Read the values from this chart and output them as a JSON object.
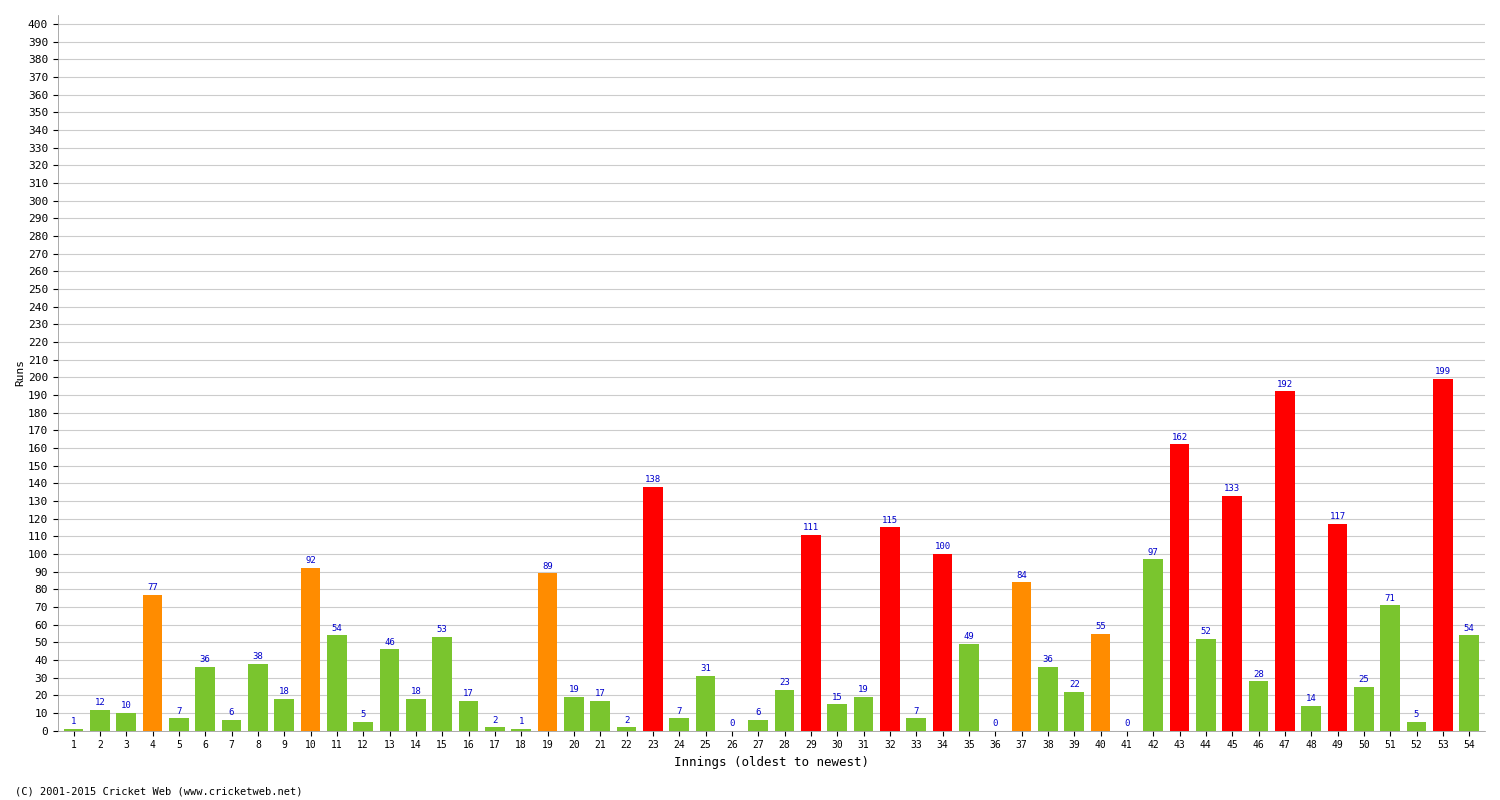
{
  "innings": [
    1,
    2,
    3,
    4,
    5,
    6,
    7,
    8,
    9,
    10,
    11,
    12,
    13,
    14,
    15,
    16,
    17,
    18,
    19,
    20,
    21,
    22,
    23,
    24,
    25,
    26,
    27,
    28,
    29,
    30,
    31,
    32,
    33,
    34,
    35,
    36,
    37,
    38,
    39,
    40,
    41,
    42,
    43,
    44,
    45,
    46,
    47,
    48,
    49,
    50,
    51,
    52,
    53,
    54
  ],
  "scores": [
    1,
    12,
    10,
    77,
    7,
    36,
    6,
    38,
    18,
    92,
    54,
    5,
    46,
    18,
    53,
    17,
    2,
    1,
    89,
    19,
    17,
    2,
    138,
    7,
    31,
    0,
    6,
    23,
    111,
    15,
    19,
    115,
    7,
    100,
    49,
    0,
    84,
    36,
    22,
    55,
    0,
    97,
    162,
    52,
    133,
    28,
    192,
    14,
    117,
    25,
    71,
    5,
    199,
    54
  ],
  "colors": [
    "#7ac52e",
    "#7ac52e",
    "#7ac52e",
    "#ff8c00",
    "#7ac52e",
    "#7ac52e",
    "#7ac52e",
    "#7ac52e",
    "#7ac52e",
    "#ff8c00",
    "#7ac52e",
    "#7ac52e",
    "#7ac52e",
    "#7ac52e",
    "#7ac52e",
    "#7ac52e",
    "#7ac52e",
    "#7ac52e",
    "#ff8c00",
    "#7ac52e",
    "#7ac52e",
    "#7ac52e",
    "#ff0000",
    "#7ac52e",
    "#7ac52e",
    "#7ac52e",
    "#7ac52e",
    "#7ac52e",
    "#ff0000",
    "#7ac52e",
    "#7ac52e",
    "#ff0000",
    "#7ac52e",
    "#ff0000",
    "#7ac52e",
    "#7ac52e",
    "#ff8c00",
    "#7ac52e",
    "#7ac52e",
    "#ff8c00",
    "#7ac52e",
    "#7ac52e",
    "#ff0000",
    "#7ac52e",
    "#ff0000",
    "#7ac52e",
    "#ff0000",
    "#7ac52e",
    "#ff0000",
    "#7ac52e",
    "#7ac52e",
    "#7ac52e",
    "#ff0000",
    "#7ac52e"
  ],
  "xlabel": "Innings (oldest to newest)",
  "ylabel": "Runs",
  "ylim_max": 400,
  "ytick_step": 10,
  "bg_color": "#ffffff",
  "grid_color": "#cccccc",
  "label_color": "#0000cc",
  "footer": "(C) 2001-2015 Cricket Web (www.cricketweb.net)",
  "bar_width": 0.75
}
